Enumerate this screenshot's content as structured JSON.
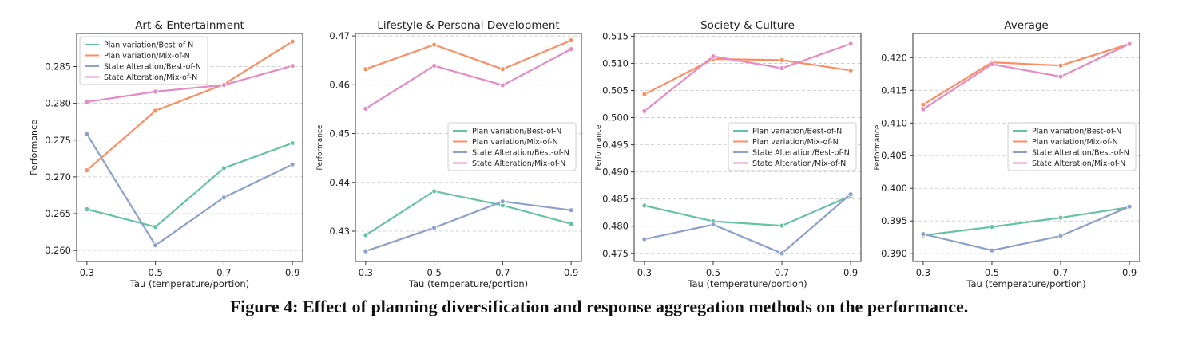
{
  "caption": "Figure 4: Effect of planning diversification and response aggregation methods on the performance.",
  "series_names": [
    "Plan variation/Best-of-N",
    "Plan variation/Mix-of-N",
    "State Alteration/Best-of-N",
    "State Alteration/Mix-of-N"
  ],
  "series_colors": [
    "#66c2a5",
    "#fc8d62",
    "#8da0cb",
    "#e78ac3"
  ],
  "chart_data": [
    {
      "type": "line",
      "title": "Art & Entertainment",
      "xlabel": "Tau (temperature/portion)",
      "ylabel": "Performance",
      "x": [
        0.3,
        0.5,
        0.7,
        0.9
      ],
      "x_tick_labels": [
        "0.3",
        "0.5",
        "0.7",
        "0.9"
      ],
      "xlim": [
        0.27,
        0.93
      ],
      "ylim": [
        0.2585,
        0.2895
      ],
      "y_ticks": [
        0.26,
        0.265,
        0.27,
        0.275,
        0.28,
        0.285
      ],
      "y_tick_labels": [
        "0.260",
        "0.265",
        "0.270",
        "0.275",
        "0.280",
        "0.285"
      ],
      "legend": "top-left",
      "grid": "y-dashed",
      "series": [
        {
          "name": "Plan variation/Best-of-N",
          "values": [
            0.2656,
            0.2632,
            0.2712,
            0.2746
          ]
        },
        {
          "name": "Plan variation/Mix-of-N",
          "values": [
            0.2709,
            0.279,
            0.2826,
            0.2884
          ]
        },
        {
          "name": "State Alteration/Best-of-N",
          "values": [
            0.2758,
            0.2607,
            0.2672,
            0.2717
          ]
        },
        {
          "name": "State Alteration/Mix-of-N",
          "values": [
            0.2802,
            0.2816,
            0.2825,
            0.2851
          ]
        }
      ]
    },
    {
      "type": "line",
      "title": "Lifestyle & Personal Development",
      "xlabel": "Tau (temperature/portion)",
      "ylabel": "Performance",
      "x": [
        0.3,
        0.5,
        0.7,
        0.9
      ],
      "x_tick_labels": [
        "0.3",
        "0.5",
        "0.7",
        "0.9"
      ],
      "xlim": [
        0.27,
        0.93
      ],
      "ylim": [
        0.4238,
        0.4705
      ],
      "y_ticks": [
        0.43,
        0.44,
        0.45,
        0.46,
        0.47
      ],
      "y_tick_labels": [
        "0.43",
        "0.44",
        "0.45",
        "0.46",
        "0.47"
      ],
      "legend": "center-right",
      "grid": "y-dashed",
      "series": [
        {
          "name": "Plan variation/Best-of-N",
          "values": [
            0.4292,
            0.4382,
            0.4353,
            0.4315
          ]
        },
        {
          "name": "Plan variation/Mix-of-N",
          "values": [
            0.4632,
            0.4682,
            0.4632,
            0.4691
          ]
        },
        {
          "name": "State Alteration/Best-of-N",
          "values": [
            0.4259,
            0.4307,
            0.4361,
            0.4343
          ]
        },
        {
          "name": "State Alteration/Mix-of-N",
          "values": [
            0.4551,
            0.4639,
            0.4599,
            0.4673
          ]
        }
      ]
    },
    {
      "type": "line",
      "title": "Society & Culture",
      "xlabel": "Tau (temperature/portion)",
      "ylabel": "Performance",
      "x": [
        0.3,
        0.5,
        0.7,
        0.9
      ],
      "x_tick_labels": [
        "0.3",
        "0.5",
        "0.7",
        "0.9"
      ],
      "xlim": [
        0.27,
        0.93
      ],
      "ylim": [
        0.4735,
        0.5155
      ],
      "y_ticks": [
        0.475,
        0.48,
        0.485,
        0.49,
        0.495,
        0.5,
        0.505,
        0.51,
        0.515
      ],
      "y_tick_labels": [
        "0.475",
        "0.480",
        "0.485",
        "0.490",
        "0.495",
        "0.500",
        "0.505",
        "0.510",
        "0.515"
      ],
      "legend": "center-right",
      "grid": "y-dashed",
      "series": [
        {
          "name": "Plan variation/Best-of-N",
          "values": [
            0.4838,
            0.4809,
            0.4801,
            0.4856
          ]
        },
        {
          "name": "Plan variation/Mix-of-N",
          "values": [
            0.5043,
            0.5108,
            0.5106,
            0.5087
          ]
        },
        {
          "name": "State Alteration/Best-of-N",
          "values": [
            0.4776,
            0.4803,
            0.475,
            0.4859
          ]
        },
        {
          "name": "State Alteration/Mix-of-N",
          "values": [
            0.5012,
            0.5113,
            0.5091,
            0.5136
          ]
        }
      ]
    },
    {
      "type": "line",
      "title": "Average",
      "xlabel": "Tau (temperature/portion)",
      "ylabel": "Performance",
      "x": [
        0.3,
        0.5,
        0.7,
        0.9
      ],
      "x_tick_labels": [
        "0.3",
        "0.5",
        "0.7",
        "0.9"
      ],
      "xlim": [
        0.27,
        0.93
      ],
      "ylim": [
        0.3888,
        0.4237
      ],
      "y_ticks": [
        0.39,
        0.395,
        0.4,
        0.405,
        0.41,
        0.415,
        0.42
      ],
      "y_tick_labels": [
        "0.390",
        "0.395",
        "0.400",
        "0.405",
        "0.410",
        "0.415",
        "0.420"
      ],
      "legend": "center-right",
      "grid": "y-dashed",
      "series": [
        {
          "name": "Plan variation/Best-of-N",
          "values": [
            0.3928,
            0.3941,
            0.3955,
            0.3971
          ]
        },
        {
          "name": "Plan variation/Mix-of-N",
          "values": [
            0.4128,
            0.4193,
            0.4188,
            0.4221
          ]
        },
        {
          "name": "State Alteration/Best-of-N",
          "values": [
            0.393,
            0.3905,
            0.3927,
            0.3972
          ]
        },
        {
          "name": "State Alteration/Mix-of-N",
          "values": [
            0.4121,
            0.419,
            0.4171,
            0.4221
          ]
        }
      ]
    }
  ]
}
